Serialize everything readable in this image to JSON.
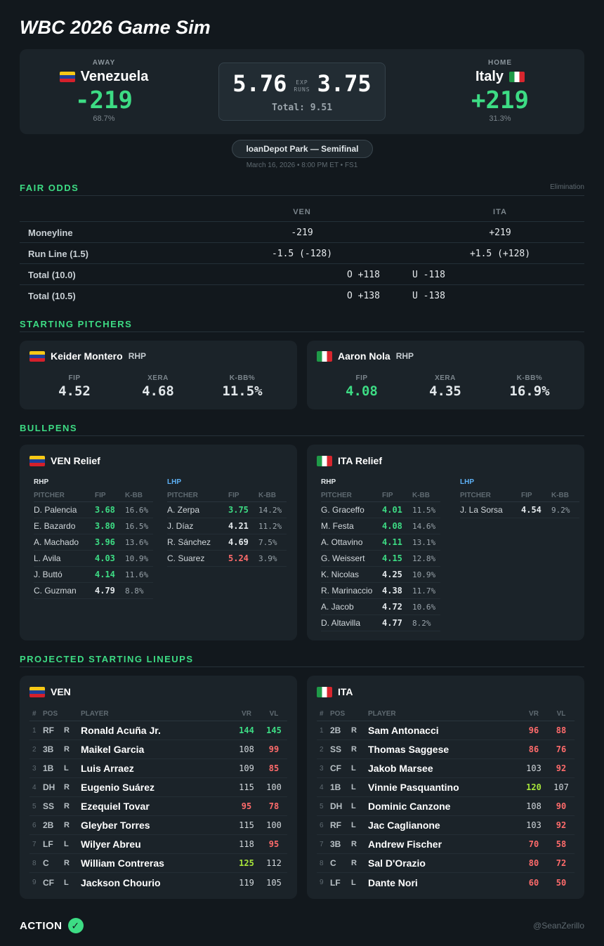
{
  "title": "WBC 2026 Game Sim",
  "scoreboard": {
    "away": {
      "label": "AWAY",
      "name": "Venezuela",
      "odds": "-219",
      "pct": "68.7%"
    },
    "home": {
      "label": "HOME",
      "name": "Italy",
      "odds": "+219",
      "pct": "31.3%"
    },
    "exp_away": "5.76",
    "exp_home": "3.75",
    "exp_label_1": "EXP",
    "exp_label_2": "RUNS",
    "total": "Total: 9.51"
  },
  "venue": {
    "name": "loanDepot Park — Semifinal",
    "date": "March 16, 2026 • 8:00 PM ET • FS1"
  },
  "fair_odds": {
    "title": "FAIR ODDS",
    "note": "Elimination",
    "col_away": "VEN",
    "col_home": "ITA",
    "moneyline": {
      "label": "Moneyline",
      "away": "-219",
      "home": "+219"
    },
    "runline": {
      "label": "Run Line (1.5)",
      "away": "-1.5 (-128)",
      "home": "+1.5 (+128)"
    },
    "total_10": {
      "label": "Total (10.0)",
      "over": "O +118",
      "under": "U -118"
    },
    "total_105": {
      "label": "Total (10.5)",
      "over": "O +138",
      "under": "U -138"
    }
  },
  "starting_pitchers": {
    "title": "STARTING PITCHERS",
    "stat_labels": [
      "FIP",
      "XERA",
      "K-BB%"
    ],
    "away": {
      "name": "Keider Montero",
      "hand": "RHP",
      "fip": "4.52",
      "xera": "4.68",
      "kbb": "11.5%"
    },
    "home": {
      "name": "Aaron Nola",
      "hand": "RHP",
      "fip": "4.08",
      "xera": "4.35",
      "kbb": "16.9%"
    }
  },
  "bullpens": {
    "title": "BULLPENS",
    "headers": {
      "pitcher": "PITCHER",
      "fip": "FIP",
      "kbb": "K-BB"
    },
    "away": {
      "name": "VEN Relief",
      "rhp_label": "RHP",
      "lhp_label": "LHP",
      "rhp": [
        {
          "name": "D. Palencia",
          "fip": "3.68",
          "kbb": "16.6%"
        },
        {
          "name": "E. Bazardo",
          "fip": "3.80",
          "kbb": "16.5%"
        },
        {
          "name": "A. Machado",
          "fip": "3.96",
          "kbb": "13.6%"
        },
        {
          "name": "L. Avila",
          "fip": "4.03",
          "kbb": "10.9%"
        },
        {
          "name": "J. Buttó",
          "fip": "4.14",
          "kbb": "11.6%"
        },
        {
          "name": "C. Guzman",
          "fip": "4.79",
          "kbb": "8.8%"
        }
      ],
      "lhp": [
        {
          "name": "A. Zerpa",
          "fip": "3.75",
          "kbb": "14.2%"
        },
        {
          "name": "J. Díaz",
          "fip": "4.21",
          "kbb": "11.2%"
        },
        {
          "name": "R. Sánchez",
          "fip": "4.69",
          "kbb": "7.5%"
        },
        {
          "name": "C. Suarez",
          "fip": "5.24",
          "kbb": "3.9%"
        }
      ]
    },
    "home": {
      "name": "ITA Relief",
      "rhp_label": "RHP",
      "lhp_label": "LHP",
      "rhp": [
        {
          "name": "G. Graceffo",
          "fip": "4.01",
          "kbb": "11.5%"
        },
        {
          "name": "M. Festa",
          "fip": "4.08",
          "kbb": "14.6%"
        },
        {
          "name": "A. Ottavino",
          "fip": "4.11",
          "kbb": "13.1%"
        },
        {
          "name": "G. Weissert",
          "fip": "4.15",
          "kbb": "12.8%"
        },
        {
          "name": "K. Nicolas",
          "fip": "4.25",
          "kbb": "10.9%"
        },
        {
          "name": "R. Marinaccio",
          "fip": "4.38",
          "kbb": "11.7%"
        },
        {
          "name": "A. Jacob",
          "fip": "4.72",
          "kbb": "10.6%"
        },
        {
          "name": "D. Altavilla",
          "fip": "4.77",
          "kbb": "8.2%"
        }
      ],
      "lhp": [
        {
          "name": "J. La Sorsa",
          "fip": "4.54",
          "kbb": "9.2%"
        }
      ]
    }
  },
  "lineups": {
    "title": "PROJECTED STARTING LINEUPS",
    "headers": {
      "num": "#",
      "pos": "POS",
      "player": "PLAYER",
      "vr": "VR",
      "vl": "VL"
    },
    "away": {
      "name": "VEN",
      "rows": [
        {
          "n": "1",
          "pos": "RF",
          "hand": "R",
          "name": "Ronald Acuña Jr.",
          "vr": "144",
          "vl": "145",
          "vr_c": "green",
          "vl_c": "green"
        },
        {
          "n": "2",
          "pos": "3B",
          "hand": "R",
          "name": "Maikel Garcia",
          "vr": "108",
          "vl": "99",
          "vr_c": "",
          "vl_c": "red"
        },
        {
          "n": "3",
          "pos": "1B",
          "hand": "L",
          "name": "Luis Arraez",
          "vr": "109",
          "vl": "85",
          "vr_c": "",
          "vl_c": "red"
        },
        {
          "n": "4",
          "pos": "DH",
          "hand": "R",
          "name": "Eugenio Suárez",
          "vr": "115",
          "vl": "100",
          "vr_c": "",
          "vl_c": ""
        },
        {
          "n": "5",
          "pos": "SS",
          "hand": "R",
          "name": "Ezequiel Tovar",
          "vr": "95",
          "vl": "78",
          "vr_c": "red",
          "vl_c": "red"
        },
        {
          "n": "6",
          "pos": "2B",
          "hand": "R",
          "name": "Gleyber Torres",
          "vr": "115",
          "vl": "100",
          "vr_c": "",
          "vl_c": ""
        },
        {
          "n": "7",
          "pos": "LF",
          "hand": "L",
          "name": "Wilyer Abreu",
          "vr": "118",
          "vl": "95",
          "vr_c": "",
          "vl_c": "red"
        },
        {
          "n": "8",
          "pos": "C",
          "hand": "R",
          "name": "William Contreras",
          "vr": "125",
          "vl": "112",
          "vr_c": "lime",
          "vl_c": ""
        },
        {
          "n": "9",
          "pos": "CF",
          "hand": "L",
          "name": "Jackson Chourio",
          "vr": "119",
          "vl": "105",
          "vr_c": "",
          "vl_c": ""
        }
      ]
    },
    "home": {
      "name": "ITA",
      "rows": [
        {
          "n": "1",
          "pos": "2B",
          "hand": "R",
          "name": "Sam Antonacci",
          "vr": "96",
          "vl": "88",
          "vr_c": "red",
          "vl_c": "red"
        },
        {
          "n": "2",
          "pos": "SS",
          "hand": "R",
          "name": "Thomas Saggese",
          "vr": "86",
          "vl": "76",
          "vr_c": "red",
          "vl_c": "red"
        },
        {
          "n": "3",
          "pos": "CF",
          "hand": "L",
          "name": "Jakob Marsee",
          "vr": "103",
          "vl": "92",
          "vr_c": "",
          "vl_c": "red"
        },
        {
          "n": "4",
          "pos": "1B",
          "hand": "L",
          "name": "Vinnie Pasquantino",
          "vr": "120",
          "vl": "107",
          "vr_c": "lime",
          "vl_c": ""
        },
        {
          "n": "5",
          "pos": "DH",
          "hand": "L",
          "name": "Dominic Canzone",
          "vr": "108",
          "vl": "90",
          "vr_c": "",
          "vl_c": "red"
        },
        {
          "n": "6",
          "pos": "RF",
          "hand": "L",
          "name": "Jac Caglianone",
          "vr": "103",
          "vl": "92",
          "vr_c": "",
          "vl_c": "red"
        },
        {
          "n": "7",
          "pos": "3B",
          "hand": "R",
          "name": "Andrew Fischer",
          "vr": "70",
          "vl": "58",
          "vr_c": "red",
          "vl_c": "red"
        },
        {
          "n": "8",
          "pos": "C",
          "hand": "R",
          "name": "Sal D'Orazio",
          "vr": "80",
          "vl": "72",
          "vr_c": "red",
          "vl_c": "red"
        },
        {
          "n": "9",
          "pos": "LF",
          "hand": "L",
          "name": "Dante Nori",
          "vr": "60",
          "vl": "50",
          "vr_c": "red",
          "vl_c": "red"
        }
      ]
    }
  },
  "footer": {
    "brand": "ACTION",
    "handle": "@SeanZerillo"
  },
  "colors": {
    "accent_green": "#3ddc84",
    "bad_red": "#ff6b6b",
    "lhp_blue": "#5eb2f7",
    "strong_lime": "#a8e63a",
    "background": "#12181d",
    "card": "#1b2329"
  }
}
